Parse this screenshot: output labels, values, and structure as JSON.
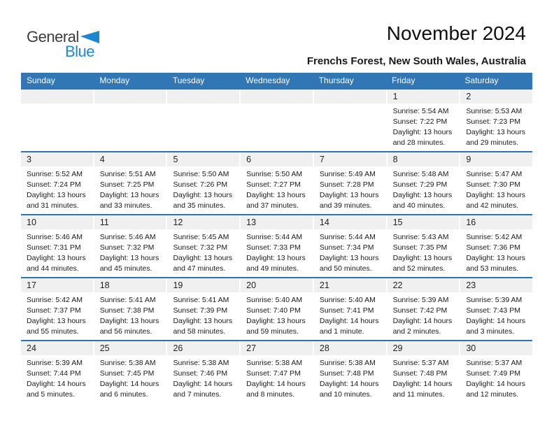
{
  "logo": {
    "part1": "General",
    "part2": "Blue"
  },
  "header": {
    "title": "November 2024",
    "subtitle": "Frenchs Forest, New South Wales, Australia"
  },
  "weekday_headers": [
    "Sunday",
    "Monday",
    "Tuesday",
    "Wednesday",
    "Thursday",
    "Friday",
    "Saturday"
  ],
  "labels": {
    "sunrise": "Sunrise:",
    "sunset": "Sunset:",
    "daylight": "Daylight:"
  },
  "colors": {
    "header_blue": "#3176B5",
    "row_border_blue": "#2E74B5",
    "day_strip_gray": "#F0F0F0",
    "logo_blue": "#1D87D2"
  },
  "weeks": [
    [
      null,
      null,
      null,
      null,
      null,
      {
        "day": 1,
        "sunrise": "5:54 AM",
        "sunset": "7:22 PM",
        "daylight_line1": "13 hours",
        "daylight_line2": "and 28 minutes."
      },
      {
        "day": 2,
        "sunrise": "5:53 AM",
        "sunset": "7:23 PM",
        "daylight_line1": "13 hours",
        "daylight_line2": "and 29 minutes."
      }
    ],
    [
      {
        "day": 3,
        "sunrise": "5:52 AM",
        "sunset": "7:24 PM",
        "daylight_line1": "13 hours",
        "daylight_line2": "and 31 minutes."
      },
      {
        "day": 4,
        "sunrise": "5:51 AM",
        "sunset": "7:25 PM",
        "daylight_line1": "13 hours",
        "daylight_line2": "and 33 minutes."
      },
      {
        "day": 5,
        "sunrise": "5:50 AM",
        "sunset": "7:26 PM",
        "daylight_line1": "13 hours",
        "daylight_line2": "and 35 minutes."
      },
      {
        "day": 6,
        "sunrise": "5:50 AM",
        "sunset": "7:27 PM",
        "daylight_line1": "13 hours",
        "daylight_line2": "and 37 minutes."
      },
      {
        "day": 7,
        "sunrise": "5:49 AM",
        "sunset": "7:28 PM",
        "daylight_line1": "13 hours",
        "daylight_line2": "and 39 minutes."
      },
      {
        "day": 8,
        "sunrise": "5:48 AM",
        "sunset": "7:29 PM",
        "daylight_line1": "13 hours",
        "daylight_line2": "and 40 minutes."
      },
      {
        "day": 9,
        "sunrise": "5:47 AM",
        "sunset": "7:30 PM",
        "daylight_line1": "13 hours",
        "daylight_line2": "and 42 minutes."
      }
    ],
    [
      {
        "day": 10,
        "sunrise": "5:46 AM",
        "sunset": "7:31 PM",
        "daylight_line1": "13 hours",
        "daylight_line2": "and 44 minutes."
      },
      {
        "day": 11,
        "sunrise": "5:46 AM",
        "sunset": "7:32 PM",
        "daylight_line1": "13 hours",
        "daylight_line2": "and 45 minutes."
      },
      {
        "day": 12,
        "sunrise": "5:45 AM",
        "sunset": "7:32 PM",
        "daylight_line1": "13 hours",
        "daylight_line2": "and 47 minutes."
      },
      {
        "day": 13,
        "sunrise": "5:44 AM",
        "sunset": "7:33 PM",
        "daylight_line1": "13 hours",
        "daylight_line2": "and 49 minutes."
      },
      {
        "day": 14,
        "sunrise": "5:44 AM",
        "sunset": "7:34 PM",
        "daylight_line1": "13 hours",
        "daylight_line2": "and 50 minutes."
      },
      {
        "day": 15,
        "sunrise": "5:43 AM",
        "sunset": "7:35 PM",
        "daylight_line1": "13 hours",
        "daylight_line2": "and 52 minutes."
      },
      {
        "day": 16,
        "sunrise": "5:42 AM",
        "sunset": "7:36 PM",
        "daylight_line1": "13 hours",
        "daylight_line2": "and 53 minutes."
      }
    ],
    [
      {
        "day": 17,
        "sunrise": "5:42 AM",
        "sunset": "7:37 PM",
        "daylight_line1": "13 hours",
        "daylight_line2": "and 55 minutes."
      },
      {
        "day": 18,
        "sunrise": "5:41 AM",
        "sunset": "7:38 PM",
        "daylight_line1": "13 hours",
        "daylight_line2": "and 56 minutes."
      },
      {
        "day": 19,
        "sunrise": "5:41 AM",
        "sunset": "7:39 PM",
        "daylight_line1": "13 hours",
        "daylight_line2": "and 58 minutes."
      },
      {
        "day": 20,
        "sunrise": "5:40 AM",
        "sunset": "7:40 PM",
        "daylight_line1": "13 hours",
        "daylight_line2": "and 59 minutes."
      },
      {
        "day": 21,
        "sunrise": "5:40 AM",
        "sunset": "7:41 PM",
        "daylight_line1": "14 hours",
        "daylight_line2": "and 1 minute."
      },
      {
        "day": 22,
        "sunrise": "5:39 AM",
        "sunset": "7:42 PM",
        "daylight_line1": "14 hours",
        "daylight_line2": "and 2 minutes."
      },
      {
        "day": 23,
        "sunrise": "5:39 AM",
        "sunset": "7:43 PM",
        "daylight_line1": "14 hours",
        "daylight_line2": "and 3 minutes."
      }
    ],
    [
      {
        "day": 24,
        "sunrise": "5:39 AM",
        "sunset": "7:44 PM",
        "daylight_line1": "14 hours",
        "daylight_line2": "and 5 minutes."
      },
      {
        "day": 25,
        "sunrise": "5:38 AM",
        "sunset": "7:45 PM",
        "daylight_line1": "14 hours",
        "daylight_line2": "and 6 minutes."
      },
      {
        "day": 26,
        "sunrise": "5:38 AM",
        "sunset": "7:46 PM",
        "daylight_line1": "14 hours",
        "daylight_line2": "and 7 minutes."
      },
      {
        "day": 27,
        "sunrise": "5:38 AM",
        "sunset": "7:47 PM",
        "daylight_line1": "14 hours",
        "daylight_line2": "and 8 minutes."
      },
      {
        "day": 28,
        "sunrise": "5:38 AM",
        "sunset": "7:48 PM",
        "daylight_line1": "14 hours",
        "daylight_line2": "and 10 minutes."
      },
      {
        "day": 29,
        "sunrise": "5:37 AM",
        "sunset": "7:48 PM",
        "daylight_line1": "14 hours",
        "daylight_line2": "and 11 minutes."
      },
      {
        "day": 30,
        "sunrise": "5:37 AM",
        "sunset": "7:49 PM",
        "daylight_line1": "14 hours",
        "daylight_line2": "and 12 minutes."
      }
    ]
  ]
}
